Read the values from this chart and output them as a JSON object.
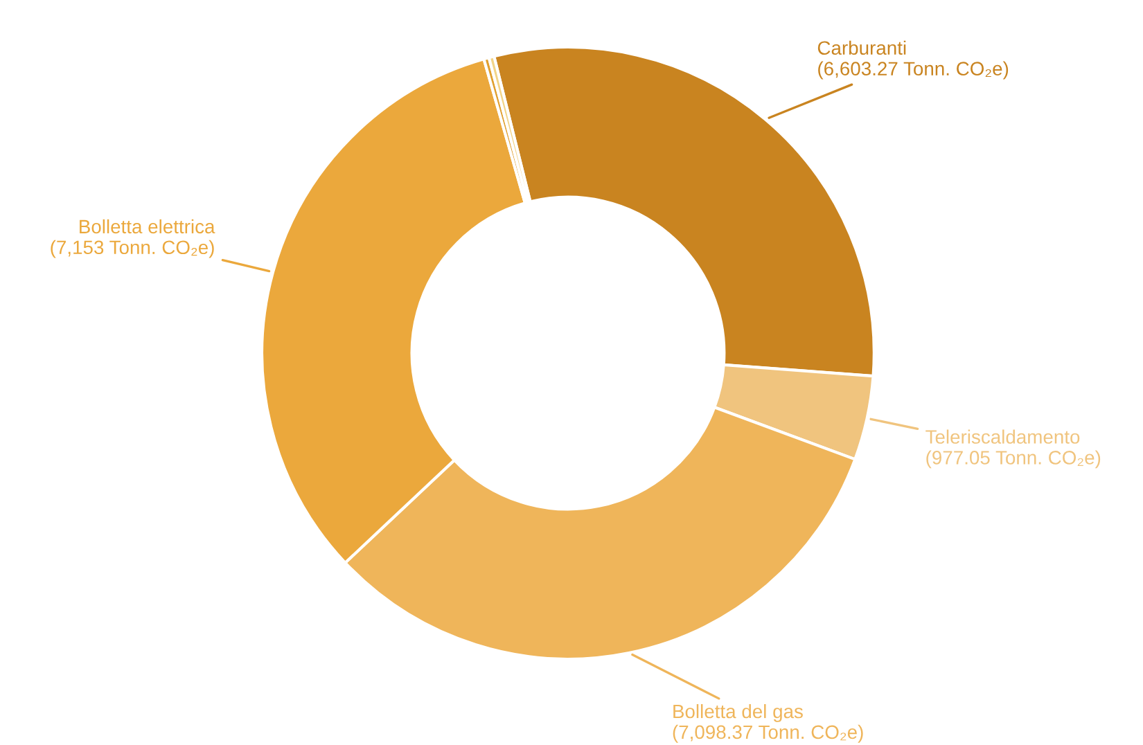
{
  "chart_data": {
    "type": "donut",
    "categories": [
      "Carburanti",
      "Teleriscaldamento",
      "Bolletta del gas",
      "Bolletta elettrica",
      null,
      null
    ],
    "values": [
      6603.27,
      977.05,
      7098.37,
      7153,
      60,
      60
    ],
    "value_labels": [
      "(6,603.27 Tonn. CO₂e)",
      "(977.05 Tonn. CO₂e)",
      "(7,098.37 Tonn. CO₂e)",
      "(7,153 Tonn. CO₂e)",
      null,
      null
    ],
    "colors": [
      "#c98420",
      "#f0c47e",
      "#efb55a",
      "#eba83c",
      "#e0a030",
      "#f2d488"
    ],
    "legend": false
  }
}
